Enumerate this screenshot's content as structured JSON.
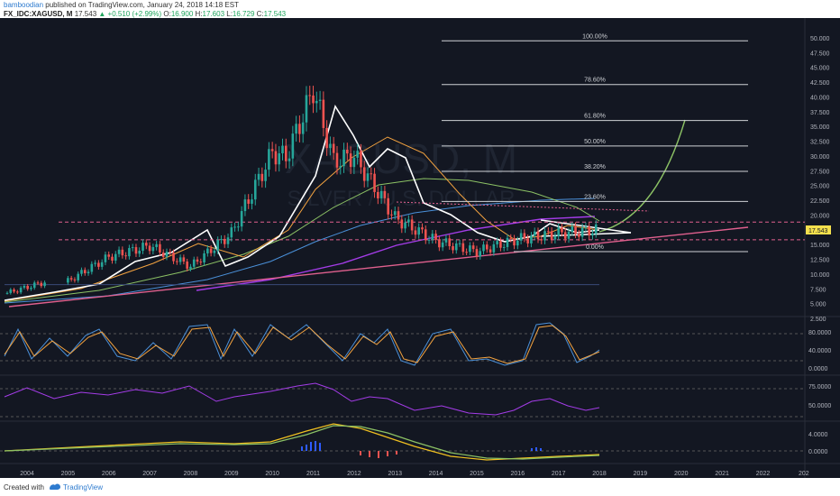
{
  "header": {
    "author": "bamboodian",
    "published": "published on TradingView.com, January 24, 2018 14:18 EST",
    "symbol": "FX_IDC:XAGUSD, M",
    "last": "17.543",
    "change": "+0.510 (+2.99%)",
    "o_label": "O:",
    "o_value": "16.900",
    "h_label": "H:",
    "h_value": "17.603",
    "l_label": "L:",
    "l_value": "16.729",
    "c_label": "C:",
    "c_value": "17.543"
  },
  "watermark": {
    "big": "XAGUSD, M",
    "small": "SILVER / U.S. DOLLAR"
  },
  "footer": {
    "created_with": "Created with",
    "brand": "TradingView"
  },
  "colors": {
    "background": "#131722",
    "bull": "#26a69a",
    "bear": "#ef5350",
    "fib": "#cfd2d6",
    "sma_white": "#ffffff",
    "sma_orange": "#f4a340",
    "sma_green": "#8cc265",
    "sma_blue": "#4a90d9",
    "sma_purple": "#a43ce8",
    "trend_pink": "#e0608e",
    "macd_blue": "#2e5bff"
  },
  "chart_data": {
    "type": "candlestick",
    "price_axis": {
      "ticks": [
        "50.000",
        "47.500",
        "45.000",
        "42.500",
        "40.000",
        "37.500",
        "35.000",
        "32.500",
        "30.000",
        "27.500",
        "25.000",
        "22.500",
        "20.000",
        "17.500",
        "15.000",
        "12.500",
        "10.000",
        "7.500",
        "5.000",
        "2.500"
      ],
      "ylim": [
        2.5,
        52.5
      ]
    },
    "current_price_label": "17.543",
    "time_axis": [
      "2004",
      "2005",
      "2006",
      "2007",
      "2008",
      "2009",
      "2010",
      "2011",
      "2012",
      "2013",
      "2014",
      "2015",
      "2016",
      "2017",
      "2018",
      "2019",
      "2020",
      "2021",
      "2022",
      "202"
    ],
    "fib_levels": [
      {
        "label": "100.00%",
        "price": 49.5
      },
      {
        "label": "78.60%",
        "price": 42.1
      },
      {
        "label": "61.80%",
        "price": 36.0
      },
      {
        "label": "50.00%",
        "price": 31.7
      },
      {
        "label": "38.20%",
        "price": 27.4
      },
      {
        "label": "23.60%",
        "price": 22.3
      },
      {
        "label": "0.00%",
        "price": 13.8
      }
    ],
    "horizontal_levels": [
      18.8,
      15.8
    ],
    "annual_close": [
      {
        "year": 2004,
        "price": 6.8
      },
      {
        "year": 2005,
        "price": 8.8
      },
      {
        "year": 2006,
        "price": 12.9
      },
      {
        "year": 2007,
        "price": 14.8
      },
      {
        "year": 2008,
        "price": 11.3
      },
      {
        "year": 2009,
        "price": 16.9
      },
      {
        "year": 2010,
        "price": 30.6
      },
      {
        "year": 2011,
        "price": 28.2
      },
      {
        "year": 2012,
        "price": 30.0
      },
      {
        "year": 2013,
        "price": 19.5
      },
      {
        "year": 2014,
        "price": 15.6
      },
      {
        "year": 2015,
        "price": 13.8
      },
      {
        "year": 2016,
        "price": 15.9
      },
      {
        "year": 2017,
        "price": 16.9
      },
      {
        "year": 2018,
        "price": 17.5
      }
    ],
    "stoch_axis": [
      "80.0000",
      "40.0000",
      "0.0000"
    ],
    "rsi_axis": [
      "75.0000",
      "50.0000"
    ],
    "macd_axis": [
      "4.0000",
      "0.0000"
    ]
  }
}
